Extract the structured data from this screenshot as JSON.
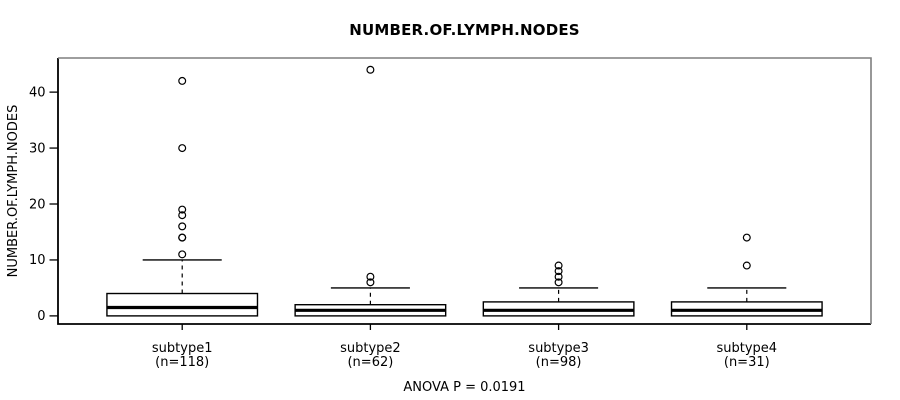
{
  "chart_data": {
    "type": "boxplot",
    "title": "NUMBER.OF.LYMPH.NODES",
    "ylabel": "NUMBER.OF.LYMPH.NODES",
    "xlabel": "",
    "annotation": "ANOVA P = 0.0191",
    "yticks": [
      0,
      10,
      20,
      30,
      40
    ],
    "ylim": [
      -1.45,
      46.1
    ],
    "grid": false,
    "legend": false,
    "box_fill": "#ffffff",
    "box_stroke": "#000000",
    "frame_gray": "#7f7f7f",
    "groups": [
      {
        "label": "subtype1",
        "sublabel": "(n=118)",
        "n": 118,
        "q1": 0,
        "median": 1.5,
        "q3": 4,
        "whisker_low": 0,
        "whisker_high": 10,
        "outliers": [
          11,
          14,
          14,
          16,
          18,
          19,
          30,
          42
        ]
      },
      {
        "label": "subtype2",
        "sublabel": "(n=62)",
        "n": 62,
        "q1": 0,
        "median": 1,
        "q3": 2,
        "whisker_low": 0,
        "whisker_high": 5,
        "outliers": [
          6,
          7,
          44
        ]
      },
      {
        "label": "subtype3",
        "sublabel": "(n=98)",
        "n": 98,
        "q1": 0,
        "median": 1,
        "q3": 2.5,
        "whisker_low": 0,
        "whisker_high": 5,
        "outliers": [
          6,
          7,
          8,
          9
        ]
      },
      {
        "label": "subtype4",
        "sublabel": "(n=31)",
        "n": 31,
        "q1": 0,
        "median": 1,
        "q3": 2.5,
        "whisker_low": 0,
        "whisker_high": 5,
        "outliers": [
          9,
          14
        ]
      }
    ]
  }
}
